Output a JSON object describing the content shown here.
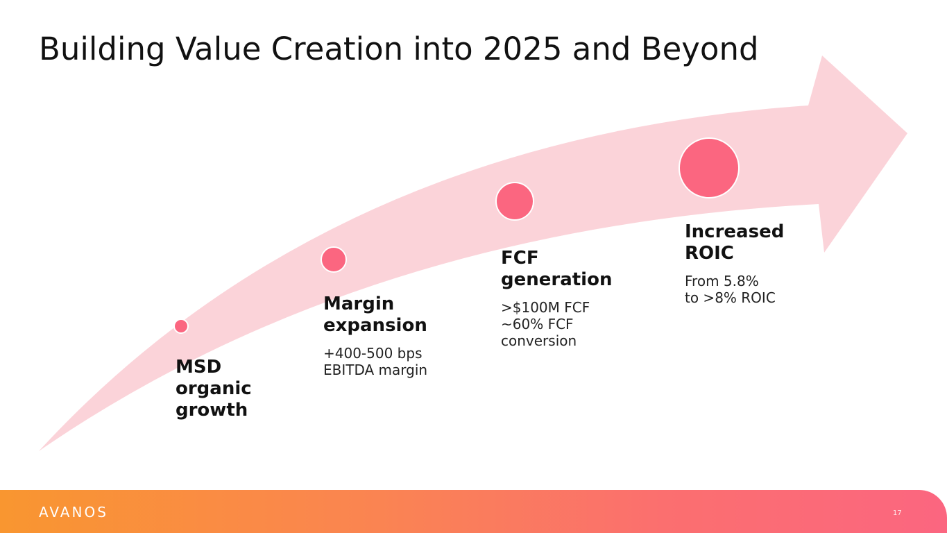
{
  "slide": {
    "title": "Building Value Creation into 2025 and Beyond",
    "page_number": "17"
  },
  "colors": {
    "arrow_fill": "#fbd3d9",
    "dot_fill": "#fb6680",
    "footer_gradient_start": "#f99630",
    "footer_gradient_end": "#fb6680"
  },
  "milestones": [
    {
      "heading": "MSD\norganic\ngrowth",
      "description": ""
    },
    {
      "heading": "Margin\nexpansion",
      "description": "+400-500 bps\nEBITDA margin"
    },
    {
      "heading": "FCF\ngeneration",
      "description": ">$100M FCF\n~60% FCF\nconversion"
    },
    {
      "heading": "Increased\nROIC",
      "description": "From 5.8%\nto >8% ROIC"
    }
  ],
  "footer": {
    "logo": "AVANOS"
  }
}
